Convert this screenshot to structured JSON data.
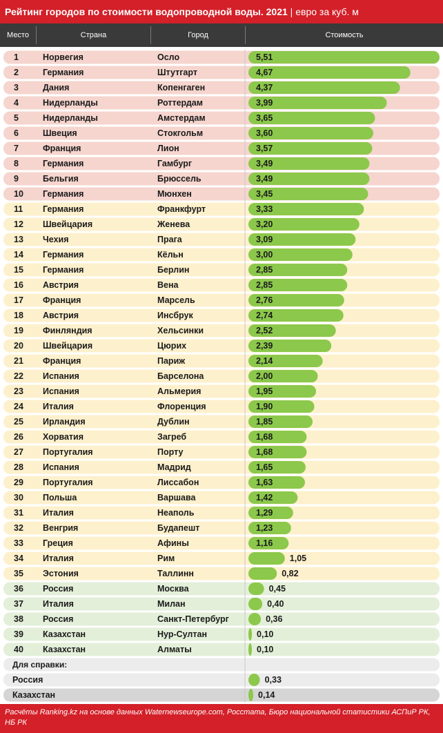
{
  "title": "Рейтинг городов по стоимости водопроводной воды. 2021",
  "title_unit": "евро за куб. м",
  "columns": {
    "rank": "Место",
    "country": "Страна",
    "city": "Город",
    "cost": "Стоимость"
  },
  "colors": {
    "accent": "#d32029",
    "bar": "#8cc84b",
    "tier_top": "#f5d5ce",
    "tier_mid": "#fdf0cc",
    "tier_low": "#e3efd9",
    "ref_row": "#ececec",
    "ref_kz": "#d5d5d5"
  },
  "reference_label": "Для справки:",
  "footnote": "Расчёты Ranking.kz на основе данных Waternewseurope.com, Росстата, Бюро национальной статистики АСПиР РК, НБ РК",
  "chart_data": {
    "type": "bar",
    "orientation": "horizontal",
    "xlim": [
      0,
      5.51
    ],
    "rows": [
      {
        "rank": "1",
        "country": "Норвегия",
        "city": "Осло",
        "value": 5.51,
        "label": "5,51",
        "tier": "top"
      },
      {
        "rank": "2",
        "country": "Германия",
        "city": "Штутгарт",
        "value": 4.67,
        "label": "4,67",
        "tier": "top"
      },
      {
        "rank": "3",
        "country": "Дания",
        "city": "Копенгаген",
        "value": 4.37,
        "label": "4,37",
        "tier": "top"
      },
      {
        "rank": "4",
        "country": "Нидерланды",
        "city": "Роттердам",
        "value": 3.99,
        "label": "3,99",
        "tier": "top"
      },
      {
        "rank": "5",
        "country": "Нидерланды",
        "city": "Амстердам",
        "value": 3.65,
        "label": "3,65",
        "tier": "top"
      },
      {
        "rank": "6",
        "country": "Швеция",
        "city": "Стокгольм",
        "value": 3.6,
        "label": "3,60",
        "tier": "top"
      },
      {
        "rank": "7",
        "country": "Франция",
        "city": "Лион",
        "value": 3.57,
        "label": "3,57",
        "tier": "top"
      },
      {
        "rank": "8",
        "country": "Германия",
        "city": "Гамбург",
        "value": 3.49,
        "label": "3,49",
        "tier": "top"
      },
      {
        "rank": "9",
        "country": "Бельгия",
        "city": "Брюссель",
        "value": 3.49,
        "label": "3,49",
        "tier": "top"
      },
      {
        "rank": "10",
        "country": "Германия",
        "city": "Мюнхен",
        "value": 3.45,
        "label": "3,45",
        "tier": "top"
      },
      {
        "rank": "11",
        "country": "Германия",
        "city": "Франкфурт",
        "value": 3.33,
        "label": "3,33",
        "tier": "mid"
      },
      {
        "rank": "12",
        "country": "Швейцария",
        "city": "Женева",
        "value": 3.2,
        "label": "3,20",
        "tier": "mid"
      },
      {
        "rank": "13",
        "country": "Чехия",
        "city": "Прага",
        "value": 3.09,
        "label": "3,09",
        "tier": "mid"
      },
      {
        "rank": "14",
        "country": "Германия",
        "city": "Кёльн",
        "value": 3.0,
        "label": "3,00",
        "tier": "mid"
      },
      {
        "rank": "15",
        "country": "Германия",
        "city": "Берлин",
        "value": 2.85,
        "label": "2,85",
        "tier": "mid"
      },
      {
        "rank": "16",
        "country": "Австрия",
        "city": "Вена",
        "value": 2.85,
        "label": "2,85",
        "tier": "mid"
      },
      {
        "rank": "17",
        "country": "Франция",
        "city": "Марсель",
        "value": 2.76,
        "label": "2,76",
        "tier": "mid"
      },
      {
        "rank": "18",
        "country": "Австрия",
        "city": "Инсбрук",
        "value": 2.74,
        "label": "2,74",
        "tier": "mid"
      },
      {
        "rank": "19",
        "country": "Финляндия",
        "city": "Хельсинки",
        "value": 2.52,
        "label": "2,52",
        "tier": "mid"
      },
      {
        "rank": "20",
        "country": "Швейцария",
        "city": "Цюрих",
        "value": 2.39,
        "label": "2,39",
        "tier": "mid"
      },
      {
        "rank": "21",
        "country": "Франция",
        "city": "Париж",
        "value": 2.14,
        "label": "2,14",
        "tier": "mid"
      },
      {
        "rank": "22",
        "country": "Испания",
        "city": "Барселона",
        "value": 2.0,
        "label": "2,00",
        "tier": "mid"
      },
      {
        "rank": "23",
        "country": "Испания",
        "city": "Альмерия",
        "value": 1.95,
        "label": "1,95",
        "tier": "mid"
      },
      {
        "rank": "24",
        "country": "Италия",
        "city": "Флоренция",
        "value": 1.9,
        "label": "1,90",
        "tier": "mid"
      },
      {
        "rank": "25",
        "country": "Ирландия",
        "city": "Дублин",
        "value": 1.85,
        "label": "1,85",
        "tier": "mid"
      },
      {
        "rank": "26",
        "country": "Хорватия",
        "city": "Загреб",
        "value": 1.68,
        "label": "1,68",
        "tier": "mid"
      },
      {
        "rank": "27",
        "country": "Португалия",
        "city": "Порту",
        "value": 1.68,
        "label": "1,68",
        "tier": "mid"
      },
      {
        "rank": "28",
        "country": "Испания",
        "city": "Мадрид",
        "value": 1.65,
        "label": "1,65",
        "tier": "mid"
      },
      {
        "rank": "29",
        "country": "Португалия",
        "city": "Лиссабон",
        "value": 1.63,
        "label": "1,63",
        "tier": "mid"
      },
      {
        "rank": "30",
        "country": "Польша",
        "city": "Варшава",
        "value": 1.42,
        "label": "1,42",
        "tier": "mid"
      },
      {
        "rank": "31",
        "country": "Италия",
        "city": "Неаполь",
        "value": 1.29,
        "label": "1,29",
        "tier": "mid"
      },
      {
        "rank": "32",
        "country": "Венгрия",
        "city": "Будапешт",
        "value": 1.23,
        "label": "1,23",
        "tier": "mid"
      },
      {
        "rank": "33",
        "country": "Греция",
        "city": "Афины",
        "value": 1.16,
        "label": "1,16",
        "tier": "mid"
      },
      {
        "rank": "34",
        "country": "Италия",
        "city": "Рим",
        "value": 1.05,
        "label": "1,05",
        "tier": "mid"
      },
      {
        "rank": "35",
        "country": "Эстония",
        "city": "Таллинн",
        "value": 0.82,
        "label": "0,82",
        "tier": "mid"
      },
      {
        "rank": "36",
        "country": "Россия",
        "city": "Москва",
        "value": 0.45,
        "label": "0,45",
        "tier": "low"
      },
      {
        "rank": "37",
        "country": "Италия",
        "city": "Милан",
        "value": 0.4,
        "label": "0,40",
        "tier": "low"
      },
      {
        "rank": "38",
        "country": "Россия",
        "city": "Санкт-Петербург",
        "value": 0.36,
        "label": "0,36",
        "tier": "low"
      },
      {
        "rank": "39",
        "country": "Казахстан",
        "city": "Нур-Султан",
        "value": 0.1,
        "label": "0,10",
        "tier": "low"
      },
      {
        "rank": "40",
        "country": "Казахстан",
        "city": "Алматы",
        "value": 0.1,
        "label": "0,10",
        "tier": "low"
      }
    ],
    "reference": [
      {
        "country": "Россия",
        "value": 0.33,
        "label": "0,33"
      },
      {
        "country": "Казахстан",
        "value": 0.14,
        "label": "0,14"
      }
    ]
  }
}
